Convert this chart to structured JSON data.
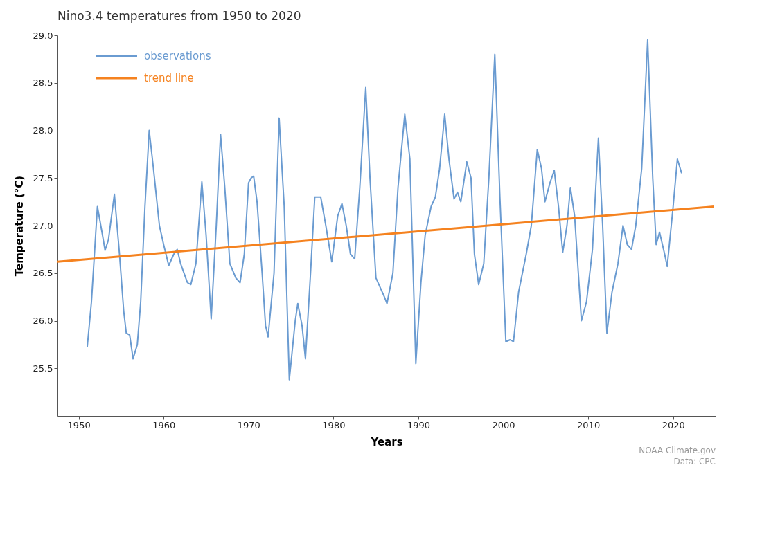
{
  "chart_data": {
    "type": "line",
    "title": "Nino3.4 temperatures from 1950 to 2020",
    "xlabel": "Years",
    "ylabel": "Temperature (°C)",
    "xlim": [
      1947.5,
      2025
    ],
    "ylim": [
      25.0,
      29.0
    ],
    "xticks": [
      1950,
      1960,
      1970,
      1980,
      1990,
      2000,
      2010,
      2020
    ],
    "yticks": [
      25.5,
      {
        "value": 26,
        "label": "26.0"
      },
      26.5,
      {
        "value": 27,
        "label": "27.0"
      },
      27.5,
      {
        "value": 28,
        "label": "28.0"
      },
      28.5,
      {
        "value": 29,
        "label": "29.0"
      }
    ],
    "grid": false,
    "legend": "top left",
    "marker": "none",
    "line_style": "solid",
    "annotations": [
      "NOAA Climate.gov",
      "Data: CPC"
    ],
    "series": [
      {
        "name": "observations",
        "color": "#6a9bd1",
        "x": [
          1951.0,
          1951.5,
          1952.2,
          1952.8,
          1953.1,
          1953.5,
          1954.2,
          1954.8,
          1955.3,
          1955.6,
          1956.0,
          1956.4,
          1956.9,
          1957.3,
          1957.8,
          1958.3,
          1958.8,
          1959.5,
          1960.0,
          1960.6,
          1961.2,
          1961.6,
          1962.0,
          1962.6,
          1962.8,
          1963.2,
          1963.8,
          1964.5,
          1965.0,
          1965.6,
          1966.2,
          1966.7,
          1967.2,
          1967.8,
          1968.5,
          1969.0,
          1969.5,
          1970.0,
          1970.3,
          1970.6,
          1971.0,
          1971.6,
          1972.0,
          1972.3,
          1973.0,
          1973.6,
          1974.2,
          1974.8,
          1975.5,
          1975.8,
          1976.3,
          1976.7,
          1977.3,
          1977.8,
          1978.5,
          1979.1,
          1979.8,
          1980.5,
          1981.0,
          1981.5,
          1982.0,
          1982.5,
          1983.1,
          1983.8,
          1984.3,
          1985.0,
          1985.5,
          1986.0,
          1986.3,
          1987.0,
          1987.6,
          1988.4,
          1989.0,
          1989.7,
          1990.3,
          1990.8,
          1991.5,
          1992.0,
          1992.5,
          1993.1,
          1993.6,
          1994.2,
          1994.6,
          1995.0,
          1995.7,
          1996.2,
          1996.6,
          1997.1,
          1997.7,
          1998.3,
          1999.0,
          1999.6,
          2000.3,
          2000.8,
          2001.2,
          2001.8,
          2002.7,
          2003.3,
          2004.0,
          2004.5,
          2004.9,
          2005.5,
          2006.0,
          2006.5,
          2007.0,
          2007.5,
          2007.9,
          2008.4,
          2009.2,
          2009.8,
          2010.5,
          2011.2,
          2011.7,
          2012.2,
          2012.8,
          2013.5,
          2014.1,
          2014.6,
          2015.1,
          2015.6,
          2016.3,
          2017.0,
          2017.6,
          2018.0,
          2018.4,
          2019.0,
          2019.3,
          2020.0,
          2020.5,
          2021.0
        ],
        "values": [
          25.72,
          26.2,
          27.2,
          26.9,
          26.74,
          26.85,
          27.33,
          26.7,
          26.1,
          25.87,
          25.85,
          25.6,
          25.75,
          26.2,
          27.2,
          28.0,
          27.6,
          27.0,
          26.8,
          26.58,
          26.7,
          26.75,
          26.6,
          26.45,
          26.4,
          26.38,
          26.6,
          27.46,
          26.9,
          26.02,
          27.0,
          27.96,
          27.4,
          26.6,
          26.45,
          26.4,
          26.7,
          27.45,
          27.5,
          27.52,
          27.25,
          26.5,
          25.95,
          25.83,
          26.5,
          28.13,
          27.2,
          25.38,
          26.0,
          26.18,
          25.95,
          25.6,
          26.5,
          27.3,
          27.3,
          27.0,
          26.62,
          27.1,
          27.23,
          27.0,
          26.7,
          26.65,
          27.4,
          28.45,
          27.5,
          26.45,
          26.35,
          26.25,
          26.18,
          26.5,
          27.4,
          28.17,
          27.7,
          25.55,
          26.4,
          26.9,
          27.2,
          27.3,
          27.6,
          28.17,
          27.7,
          27.28,
          27.35,
          27.25,
          27.67,
          27.5,
          26.7,
          26.38,
          26.6,
          27.5,
          28.8,
          27.3,
          25.78,
          25.8,
          25.78,
          26.3,
          26.7,
          27.0,
          27.8,
          27.6,
          27.25,
          27.45,
          27.58,
          27.2,
          26.72,
          27.0,
          27.4,
          27.1,
          26.0,
          26.2,
          26.75,
          27.92,
          27.0,
          25.87,
          26.3,
          26.6,
          27.0,
          26.8,
          26.75,
          27.0,
          27.6,
          28.95,
          27.5,
          26.8,
          26.93,
          26.7,
          26.57,
          27.2,
          27.7,
          27.55
        ]
      },
      {
        "name": "trend line",
        "color": "#f5821f",
        "type": "line",
        "x": [
          1947.5,
          2024.8
        ],
        "values": [
          26.62,
          27.2
        ]
      }
    ]
  }
}
